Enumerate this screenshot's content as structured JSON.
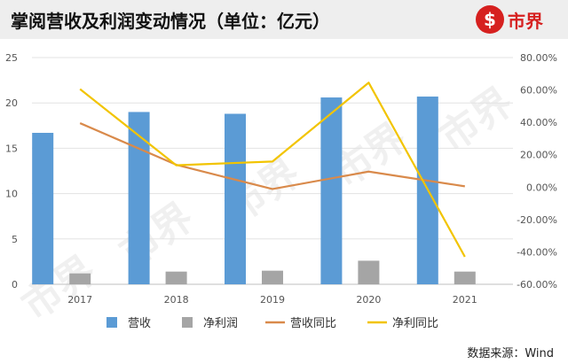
{
  "title": "掌阅营收及利润变动情况（单位：亿元）",
  "logo": {
    "icon": "shijie-circle-logo",
    "text": "市界"
  },
  "watermark": "市界",
  "source": "数据来源：Wind",
  "colors": {
    "revenue": "#5b9bd5",
    "net_profit": "#a5a5a5",
    "revenue_yoy": "#d98a4b",
    "net_profit_yoy": "#f2c400",
    "brand": "#d6201f"
  },
  "chart_data": {
    "type": "bar",
    "title": "掌阅营收及利润变动情况（单位：亿元）",
    "categories": [
      "2017",
      "2018",
      "2019",
      "2020",
      "2021"
    ],
    "y_left": {
      "ylim": [
        0,
        25
      ],
      "ticks": [
        0,
        5,
        10,
        15,
        20,
        25
      ],
      "labels": [
        "0",
        "5",
        "10",
        "15",
        "20",
        "25"
      ]
    },
    "y_right": {
      "ylim": [
        -60,
        80
      ],
      "ticks": [
        -60,
        -40,
        -20,
        0,
        20,
        40,
        60,
        80
      ],
      "labels": [
        "-60.00%",
        "-40.00%",
        "-20.00%",
        "0.00%",
        "20.00%",
        "40.00%",
        "60.00%",
        "80.00%"
      ]
    },
    "series": [
      {
        "name": "营收",
        "type": "bar",
        "axis": "left",
        "values": [
          16.7,
          19.0,
          18.8,
          20.6,
          20.7
        ]
      },
      {
        "name": "净利润",
        "type": "bar",
        "axis": "left",
        "values": [
          1.2,
          1.4,
          1.5,
          2.6,
          1.4
        ]
      },
      {
        "name": "营收同比",
        "type": "line",
        "axis": "right",
        "values": [
          39.5,
          13.8,
          -1.2,
          9.6,
          0.5
        ]
      },
      {
        "name": "净利同比",
        "type": "line",
        "axis": "right",
        "values": [
          60.5,
          13.5,
          15.8,
          64.5,
          -43.0
        ]
      }
    ],
    "grid": true,
    "legend_position": "bottom"
  }
}
